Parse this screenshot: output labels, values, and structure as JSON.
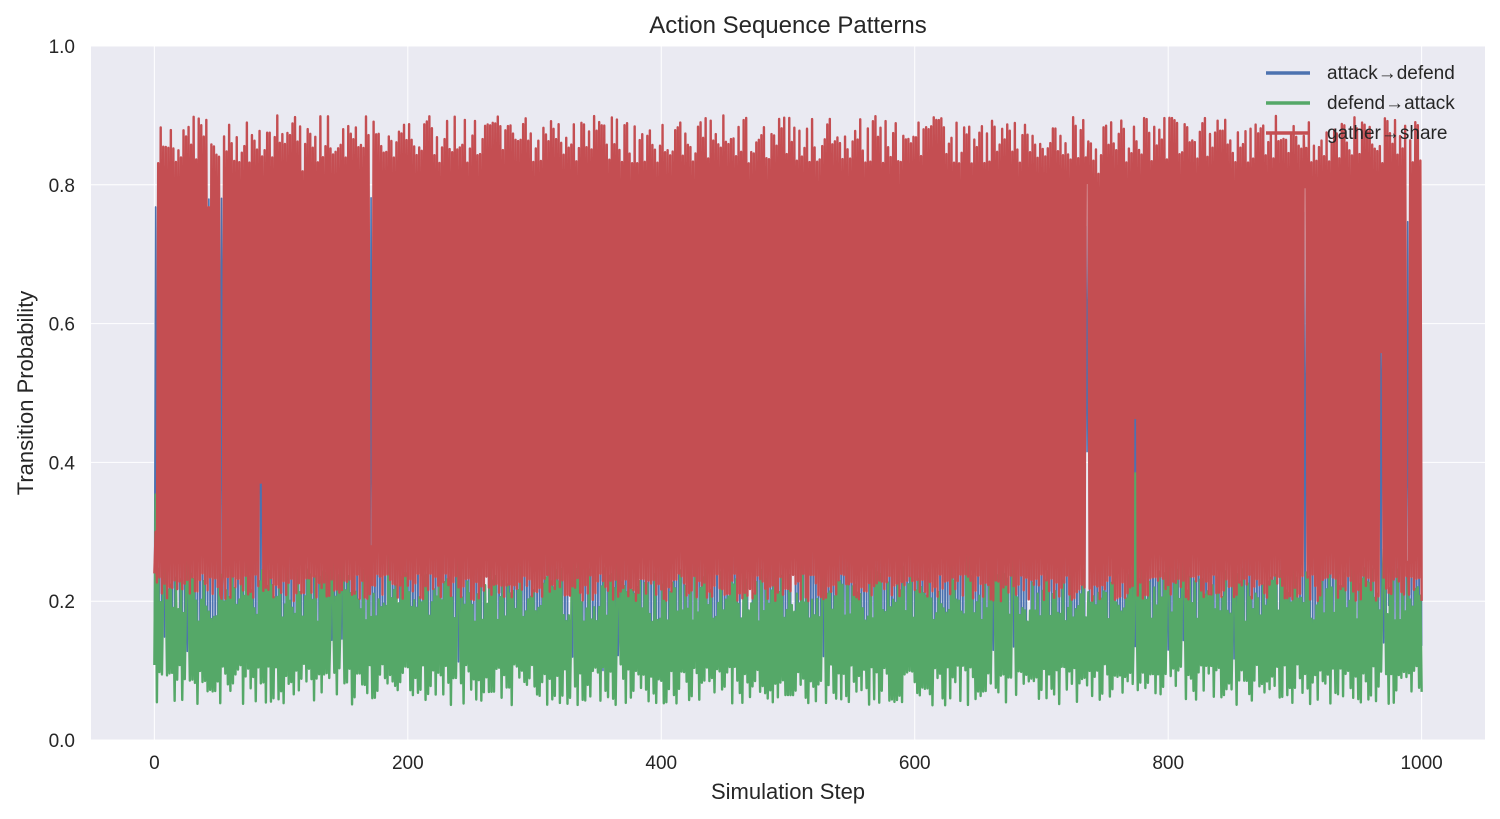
{
  "chart_data": {
    "type": "line",
    "title": "Action Sequence Patterns",
    "xlabel": "Simulation Step",
    "ylabel": "Transition Probability",
    "xlim": [
      -50,
      1050
    ],
    "ylim": [
      0.0,
      1.0
    ],
    "xticks": [
      0,
      200,
      400,
      600,
      800,
      1000
    ],
    "yticks": [
      0.0,
      0.2,
      0.4,
      0.6,
      0.8,
      1.0
    ],
    "xtick_labels": [
      "0",
      "200",
      "400",
      "600",
      "800",
      "1000"
    ],
    "ytick_labels": [
      "0.0",
      "0.2",
      "0.4",
      "0.6",
      "0.8",
      "1.0"
    ],
    "grid": true,
    "legend_position": "top-right",
    "x_range": [
      0,
      1000
    ],
    "series": [
      {
        "name": "attack→defend",
        "color": "#4c72b0",
        "value_range": [
          0.1,
          0.79
        ],
        "typical_low": 0.12,
        "typical_high": 0.78
      },
      {
        "name": "defend→attack",
        "color": "#55a868",
        "value_range": [
          0.05,
          0.39
        ],
        "typical_low": 0.07,
        "typical_high": 0.23
      },
      {
        "name": "gather→share",
        "color": "#c44e52",
        "value_range": [
          0.19,
          0.9
        ],
        "typical_low": 0.21,
        "typical_high": 0.88
      }
    ]
  }
}
